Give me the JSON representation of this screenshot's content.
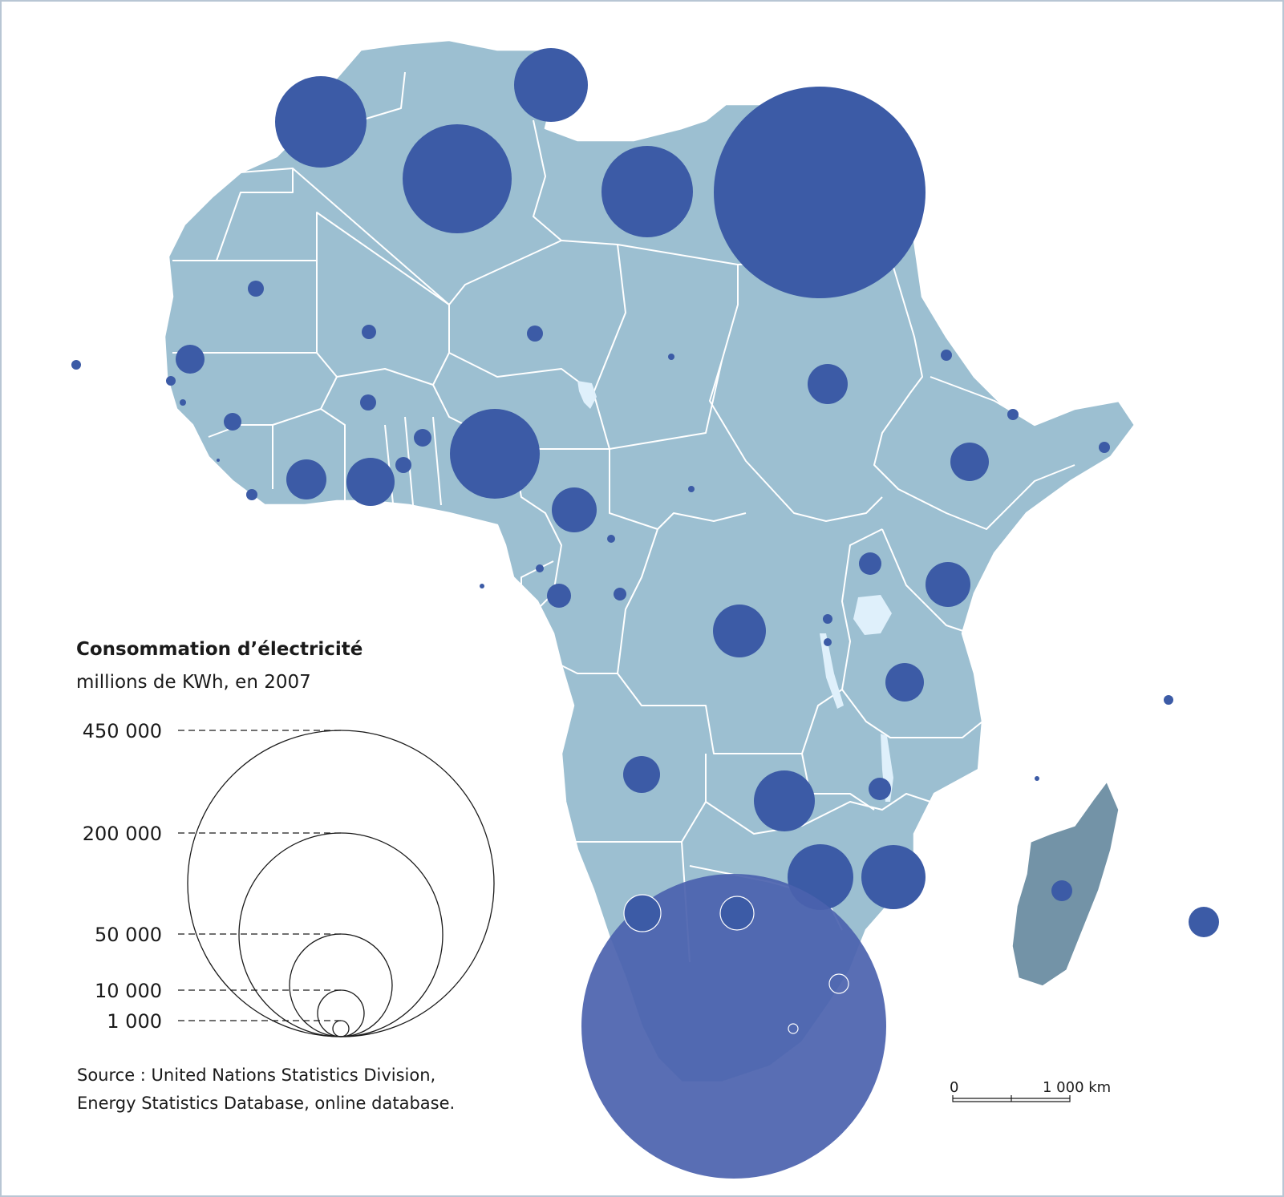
{
  "legend": {
    "title": "Consommation d’électricité",
    "subtitle": "millions de KWh, en 2007",
    "classes": [
      {
        "label": "450 000",
        "value": 450000
      },
      {
        "label": "200 000",
        "value": 200000
      },
      {
        "label": "50 000",
        "value": 50000
      },
      {
        "label": "10 000",
        "value": 10000
      },
      {
        "label": "1 000",
        "value": 1000
      }
    ]
  },
  "source": {
    "line1": "Source :  United Nations Statistics Division,",
    "line2": "Energy Statistics Database, online database."
  },
  "scale": {
    "zero": "0",
    "distance": "1 000 km"
  },
  "colors": {
    "land": "#9cbfd1",
    "madagascar": "#7393a7",
    "bubble": "#3c5ba6",
    "border": "#ffffff"
  }
}
